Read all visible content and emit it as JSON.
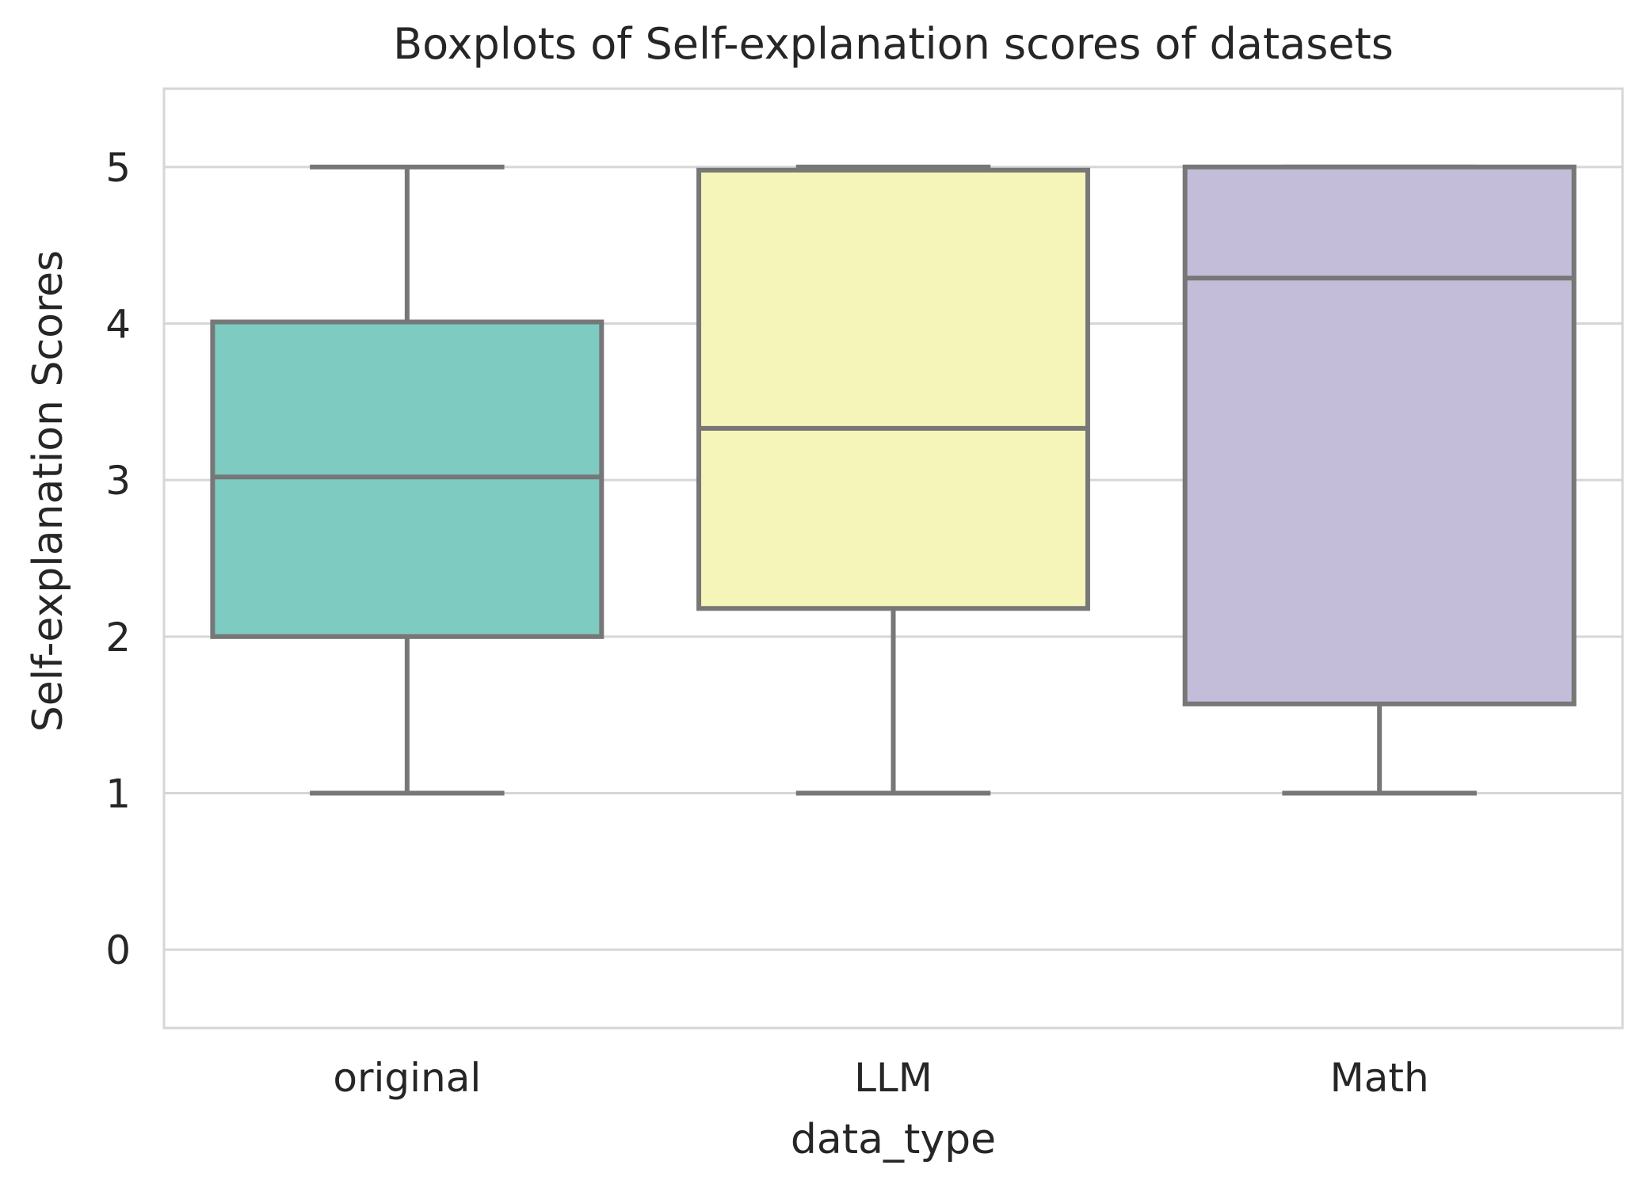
{
  "chart_data": {
    "type": "boxplot",
    "title": "Boxplots of Self-explanation scores of datasets",
    "xlabel": "data_type",
    "ylabel": "Self-explanation Scores",
    "categories": [
      "original",
      "LLM",
      "Math"
    ],
    "ylim": [
      -0.5,
      5.5
    ],
    "yticks": [
      0,
      1,
      2,
      3,
      4,
      5
    ],
    "ytick_labels": [
      "0",
      "1",
      "2",
      "3",
      "4",
      "5"
    ],
    "grid": true,
    "boxes": [
      {
        "category": "original",
        "whislo": 1,
        "q1": 2.0,
        "median": 3.02,
        "q3": 4.01,
        "whishi": 5,
        "color": "#7dcbc1"
      },
      {
        "category": "LLM",
        "whislo": 1,
        "q1": 2.18,
        "median": 3.33,
        "q3": 4.98,
        "whishi": 5,
        "color": "#f6f5b9"
      },
      {
        "category": "Math",
        "whislo": 1,
        "q1": 1.57,
        "median": 4.29,
        "q3": 5.0,
        "whishi": 5,
        "color": "#c3bdd9"
      }
    ]
  }
}
